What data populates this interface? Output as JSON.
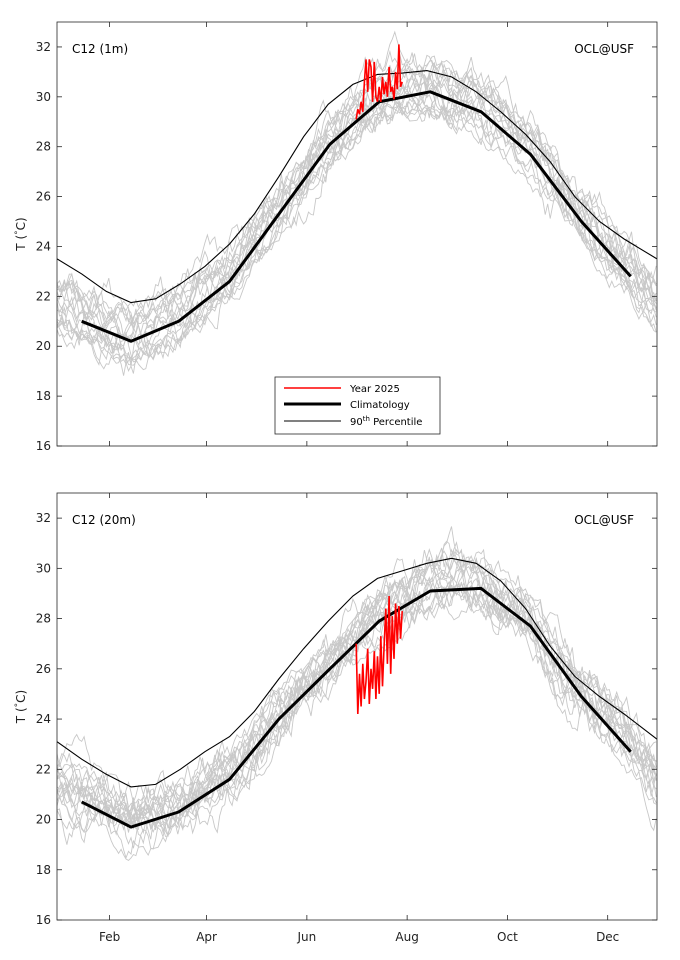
{
  "chart_data": [
    {
      "type": "line",
      "panel_label": "C12 (1m)",
      "credit": "OCL@USF",
      "ylabel": "T (°C)",
      "ylabel_unit_prefix": "T (",
      "ylabel_unit_deg": "°",
      "ylabel_unit_suffix": "C)",
      "ylim": [
        16,
        33
      ],
      "yticks": [
        16,
        18,
        20,
        22,
        24,
        26,
        28,
        30,
        32
      ],
      "xlim_days": [
        0,
        365
      ],
      "x_axis": "day of year",
      "month_ticks": [
        "Feb",
        "Apr",
        "Jun",
        "Aug",
        "Oct",
        "Dec"
      ],
      "legend": {
        "position": "lower-center",
        "items": [
          {
            "label": "Year 2025",
            "color": "#ff0000"
          },
          {
            "label": "Climatology",
            "color": "#000000"
          },
          {
            "label_base": "90",
            "label_sup": "th",
            "label_rest": " Percentile",
            "color": "#000000"
          }
        ]
      },
      "series": [
        {
          "name": "Climatology",
          "color": "#000000",
          "x": [
            15,
            45,
            74,
            105,
            135,
            166,
            196,
            227,
            258,
            288,
            319,
            349
          ],
          "y": [
            21.0,
            20.2,
            21.0,
            22.6,
            25.3,
            28.1,
            29.8,
            30.2,
            29.4,
            27.7,
            25.0,
            22.8
          ]
        },
        {
          "name": "90th Percentile",
          "color": "#000000",
          "x": [
            0,
            15,
            30,
            45,
            60,
            75,
            90,
            105,
            120,
            135,
            150,
            165,
            180,
            195,
            210,
            225,
            240,
            255,
            270,
            285,
            300,
            315,
            330,
            345,
            365
          ],
          "y": [
            23.5,
            22.9,
            22.2,
            21.75,
            21.9,
            22.5,
            23.2,
            24.1,
            25.3,
            26.8,
            28.4,
            29.7,
            30.5,
            30.9,
            30.95,
            31.05,
            30.8,
            30.2,
            29.4,
            28.5,
            27.4,
            26.0,
            25.0,
            24.3,
            23.5
          ]
        },
        {
          "name": "Year 2025",
          "color": "#ff0000",
          "x": [
            182,
            183,
            184,
            185,
            186,
            187,
            188,
            189,
            190,
            191,
            192,
            193,
            194,
            195,
            196,
            197,
            198,
            199,
            200,
            201,
            202,
            203,
            204,
            205,
            206,
            207,
            208,
            209,
            210
          ],
          "y": [
            29.1,
            29.5,
            29.3,
            29.8,
            29.4,
            30.6,
            31.5,
            30.2,
            31.5,
            31.2,
            29.8,
            31.4,
            30.0,
            29.8,
            30.4,
            29.8,
            30.8,
            30.1,
            30.6,
            30.0,
            31.2,
            30.2,
            30.4,
            29.9,
            31.0,
            30.3,
            32.1,
            30.4,
            30.6
          ]
        }
      ]
    },
    {
      "type": "line",
      "panel_label": "C12 (20m)",
      "credit": "OCL@USF",
      "ylabel": "T (°C)",
      "ylabel_unit_prefix": "T (",
      "ylabel_unit_deg": "°",
      "ylabel_unit_suffix": "C)",
      "ylim": [
        16,
        33
      ],
      "yticks": [
        16,
        18,
        20,
        22,
        24,
        26,
        28,
        30,
        32
      ],
      "xlim_days": [
        0,
        365
      ],
      "x_axis": "day of year",
      "month_ticks": [
        "Feb",
        "Apr",
        "Jun",
        "Aug",
        "Oct",
        "Dec"
      ],
      "series": [
        {
          "name": "Climatology",
          "color": "#000000",
          "x": [
            15,
            45,
            74,
            105,
            135,
            166,
            196,
            227,
            258,
            288,
            319,
            349
          ],
          "y": [
            20.7,
            19.7,
            20.3,
            21.6,
            24.0,
            26.0,
            27.9,
            29.1,
            29.2,
            27.7,
            24.9,
            22.7
          ]
        },
        {
          "name": "90th Percentile",
          "color": "#000000",
          "x": [
            0,
            15,
            30,
            45,
            60,
            75,
            90,
            105,
            120,
            135,
            150,
            165,
            180,
            195,
            210,
            225,
            240,
            255,
            270,
            285,
            300,
            315,
            330,
            345,
            365
          ],
          "y": [
            23.1,
            22.4,
            21.8,
            21.3,
            21.4,
            22.0,
            22.7,
            23.3,
            24.3,
            25.6,
            26.8,
            27.9,
            28.9,
            29.6,
            29.9,
            30.2,
            30.4,
            30.2,
            29.5,
            28.4,
            26.9,
            25.7,
            24.9,
            24.2,
            23.2
          ]
        },
        {
          "name": "Year 2025",
          "color": "#ff0000",
          "x": [
            182,
            183,
            184,
            185,
            186,
            187,
            188,
            189,
            190,
            191,
            192,
            193,
            194,
            195,
            196,
            197,
            198,
            199,
            200,
            201,
            202,
            203,
            204,
            205,
            206,
            207,
            208,
            209,
            210
          ],
          "y": [
            27.0,
            24.2,
            25.8,
            24.5,
            26.2,
            24.8,
            25.5,
            26.8,
            24.6,
            26.0,
            25.2,
            26.7,
            24.8,
            26.5,
            25.0,
            27.3,
            25.3,
            26.9,
            28.4,
            26.2,
            28.9,
            25.8,
            28.1,
            26.4,
            28.6,
            27.0,
            28.5,
            27.2,
            28.3
          ]
        }
      ]
    }
  ]
}
